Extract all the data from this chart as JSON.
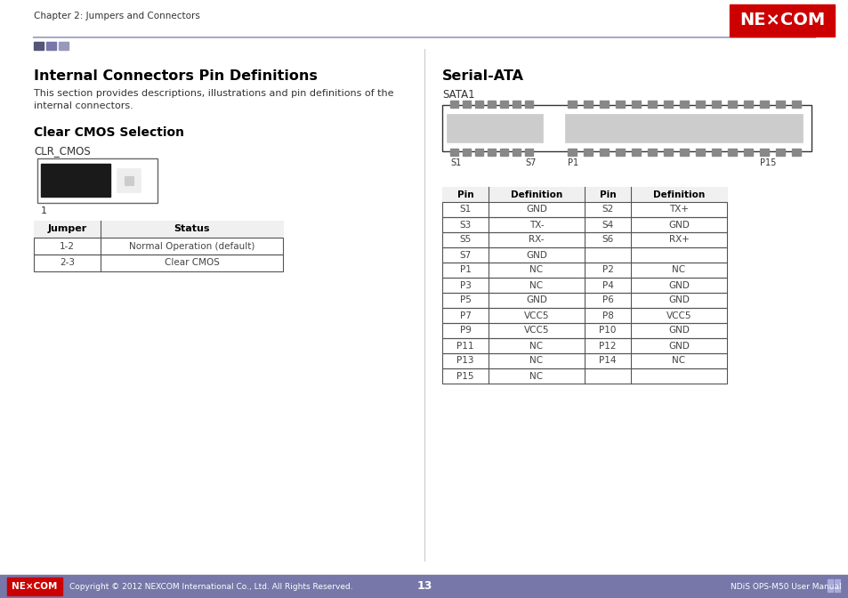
{
  "page_title": "Chapter 2: Jumpers and Connectors",
  "page_number": "13",
  "footer_left": "Copyright © 2012 NEXCOM International Co., Ltd. All Rights Reserved.",
  "footer_right": "NDiS OPS-M50 User Manual",
  "section_title": "Internal Connectors Pin Definitions",
  "section_desc1": "This section provides descriptions, illustrations and pin definitions of the",
  "section_desc2": "internal connectors.",
  "subsection1_title": "Clear CMOS Selection",
  "clr_cmos_label": "CLR_CMOS",
  "jumper_table_headers": [
    "Jumper",
    "Status"
  ],
  "jumper_table_data": [
    [
      "1-2",
      "Normal Operation (default)"
    ],
    [
      "2-3",
      "Clear CMOS"
    ]
  ],
  "serial_ata_title": "Serial-ATA",
  "sata1_label": "SATA1",
  "sata_table_headers": [
    "Pin",
    "Definition",
    "Pin",
    "Definition"
  ],
  "sata_table_data": [
    [
      "S1",
      "GND",
      "S2",
      "TX+"
    ],
    [
      "S3",
      "TX-",
      "S4",
      "GND"
    ],
    [
      "S5",
      "RX-",
      "S6",
      "RX+"
    ],
    [
      "S7",
      "GND",
      "",
      ""
    ],
    [
      "P1",
      "NC",
      "P2",
      "NC"
    ],
    [
      "P3",
      "NC",
      "P4",
      "GND"
    ],
    [
      "P5",
      "GND",
      "P6",
      "GND"
    ],
    [
      "P7",
      "VCC5",
      "P8",
      "VCC5"
    ],
    [
      "P9",
      "VCC5",
      "P10",
      "GND"
    ],
    [
      "P11",
      "NC",
      "P12",
      "GND"
    ],
    [
      "P13",
      "NC",
      "P14",
      "NC"
    ],
    [
      "P15",
      "NC",
      "",
      ""
    ]
  ],
  "bg_color": "#ffffff",
  "text_color": "#000000",
  "sq_colors": [
    "#555577",
    "#7777aa",
    "#9999bb"
  ],
  "nexcom_red": "#cc0000",
  "top_line_color": "#aaaacc",
  "bottom_bar_color": "#7777aa",
  "col_div_color": "#cccccc",
  "table_border_color": "#555555",
  "table_text_color": "#444444"
}
